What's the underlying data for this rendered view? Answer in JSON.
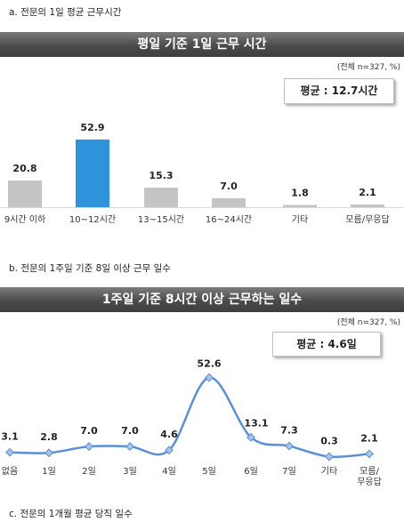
{
  "sections": [
    {
      "label": "a.  전문의 1일 평균 근무시간"
    },
    {
      "label": "b.  전문의 1주일 기준 8일 이상 근무 일수"
    },
    {
      "label": "c.  전문의 1개월 평균 당직 일수"
    }
  ],
  "chart_data": [
    {
      "type": "bar",
      "title": "평일 기준 1일 근무 시간",
      "note": "(전체 n=327, %)",
      "average": "평균 : 12.7시간",
      "categories": [
        "9시간 이하",
        "10~12시간",
        "13~15시간",
        "16~24시간",
        "기타",
        "모름/무응답"
      ],
      "values": [
        20.8,
        52.9,
        15.3,
        7.0,
        1.8,
        2.1
      ],
      "value_labels": [
        "20.8",
        "52.9",
        "15.3",
        "7.0",
        "1.8",
        "2.1"
      ],
      "highlight_index": 1,
      "colors": {
        "bar": "#c4c4c4",
        "highlight": "#2f93dc"
      }
    },
    {
      "type": "line",
      "title": "1주일 기준 8시간 이상 근무하는 일수",
      "note": "(전체 n=327, %)",
      "average": "평균 : 4.6일",
      "categories": [
        "없음",
        "1일",
        "2일",
        "3일",
        "4일",
        "5일",
        "6일",
        "7일",
        "기타",
        "모름/\n무응답"
      ],
      "values": [
        3.1,
        2.8,
        7.0,
        7.0,
        4.6,
        52.6,
        13.1,
        7.3,
        0.3,
        2.1
      ],
      "value_labels": [
        "3.1",
        "2.8",
        "7.0",
        "7.0",
        "4.6",
        "52.6",
        "13.1",
        "7.3",
        "0.3",
        "2.1"
      ],
      "colors": {
        "line": "#5b8fd6",
        "marker": "#a9c4ea"
      }
    }
  ]
}
